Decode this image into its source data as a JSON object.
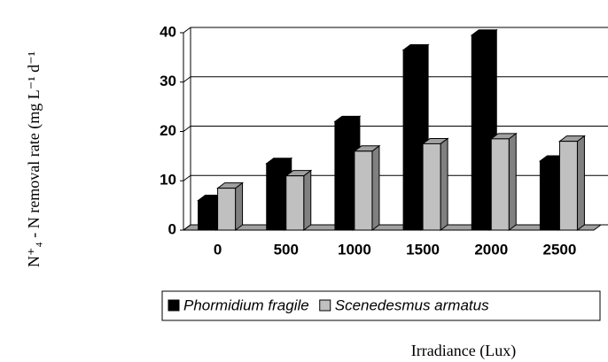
{
  "chart_data": {
    "type": "bar3d",
    "y_label": "N⁺₄ - N removal rate  (mg L⁻¹ d⁻¹",
    "x_label": "Irradiance (Lux)",
    "categories": [
      "0",
      "500",
      "1000",
      "1500",
      "2000",
      "2500"
    ],
    "series": [
      {
        "name": "Phormidium fragile",
        "color": "#000000",
        "values": [
          6,
          13.5,
          22,
          36.5,
          39.5,
          14
        ]
      },
      {
        "name": "Scenedesmus armatus",
        "color": "#c0c0c0",
        "values": [
          8.5,
          11,
          16,
          17.5,
          18.5,
          18
        ]
      }
    ],
    "ylim": [
      0,
      40
    ],
    "yticks": [
      0,
      10,
      20,
      30,
      40
    ],
    "grid": true
  }
}
